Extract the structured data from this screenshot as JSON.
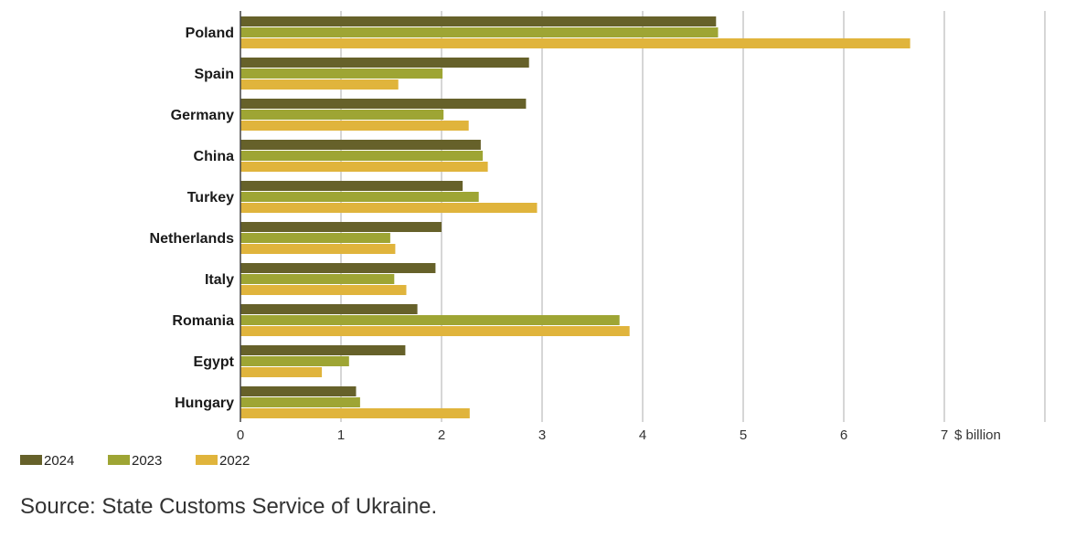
{
  "chart_data": {
    "type": "bar",
    "orientation": "horizontal",
    "categories": [
      "Poland",
      "Spain",
      "Germany",
      "China",
      "Turkey",
      "Netherlands",
      "Italy",
      "Romania",
      "Egypt",
      "Hungary"
    ],
    "series": [
      {
        "name": "2024",
        "color": "#66612a",
        "values": [
          4.73,
          2.87,
          2.84,
          2.39,
          2.21,
          2.0,
          1.94,
          1.76,
          1.64,
          1.15
        ]
      },
      {
        "name": "2023",
        "color": "#9ea534",
        "values": [
          4.75,
          2.01,
          2.02,
          2.41,
          2.37,
          1.49,
          1.53,
          3.77,
          1.08,
          1.19
        ]
      },
      {
        "name": "2022",
        "color": "#e0b43c",
        "values": [
          6.66,
          1.57,
          2.27,
          2.46,
          2.95,
          1.54,
          1.65,
          3.87,
          0.81,
          2.28
        ]
      }
    ],
    "x_ticks": [
      "0",
      "1",
      "2",
      "3",
      "4",
      "5",
      "6",
      "7"
    ],
    "xlim": [
      0,
      8
    ],
    "x_unit": "$ billion",
    "grid": "vertical",
    "legend_position": "bottom-left"
  },
  "source": "Source: State Customs Service of Ukraine."
}
